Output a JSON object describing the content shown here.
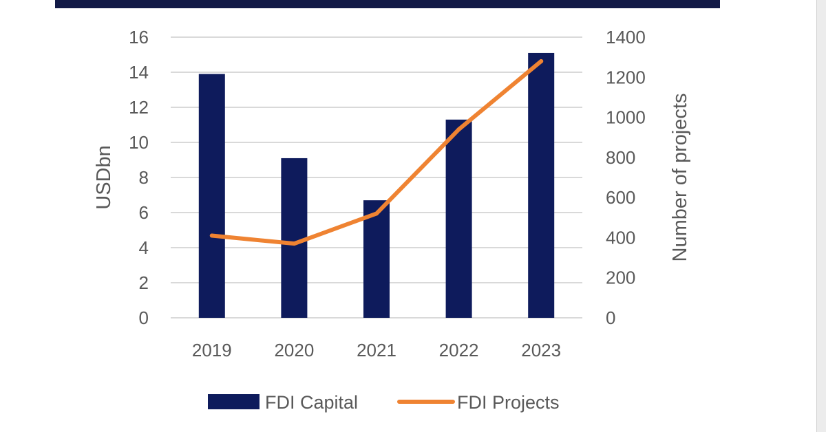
{
  "chart_data": {
    "type": "bar",
    "categories": [
      "2019",
      "2020",
      "2021",
      "2022",
      "2023"
    ],
    "series": [
      {
        "name": "FDI Capital",
        "type": "bar",
        "axis": "left",
        "values": [
          13.9,
          9.1,
          6.7,
          11.3,
          15.1
        ],
        "color": "#0e1b5c"
      },
      {
        "name": "FDI Projects",
        "type": "line",
        "axis": "right",
        "values": [
          410,
          370,
          520,
          940,
          1280
        ],
        "color": "#ef8332"
      }
    ],
    "ylabel": "USDbn",
    "y2label": "Number of projects",
    "ylim": [
      0,
      16
    ],
    "y2lim": [
      0,
      1400
    ],
    "yticks": [
      "0",
      "2",
      "4",
      "6",
      "8",
      "10",
      "12",
      "14",
      "16"
    ],
    "y2ticks": [
      "0",
      "200",
      "400",
      "600",
      "800",
      "1000",
      "1200",
      "1400"
    ],
    "grid": true,
    "legend": "bottom"
  },
  "colors": {
    "banner": "#121a47",
    "grid": "#d9d9d9",
    "text": "#595959"
  }
}
